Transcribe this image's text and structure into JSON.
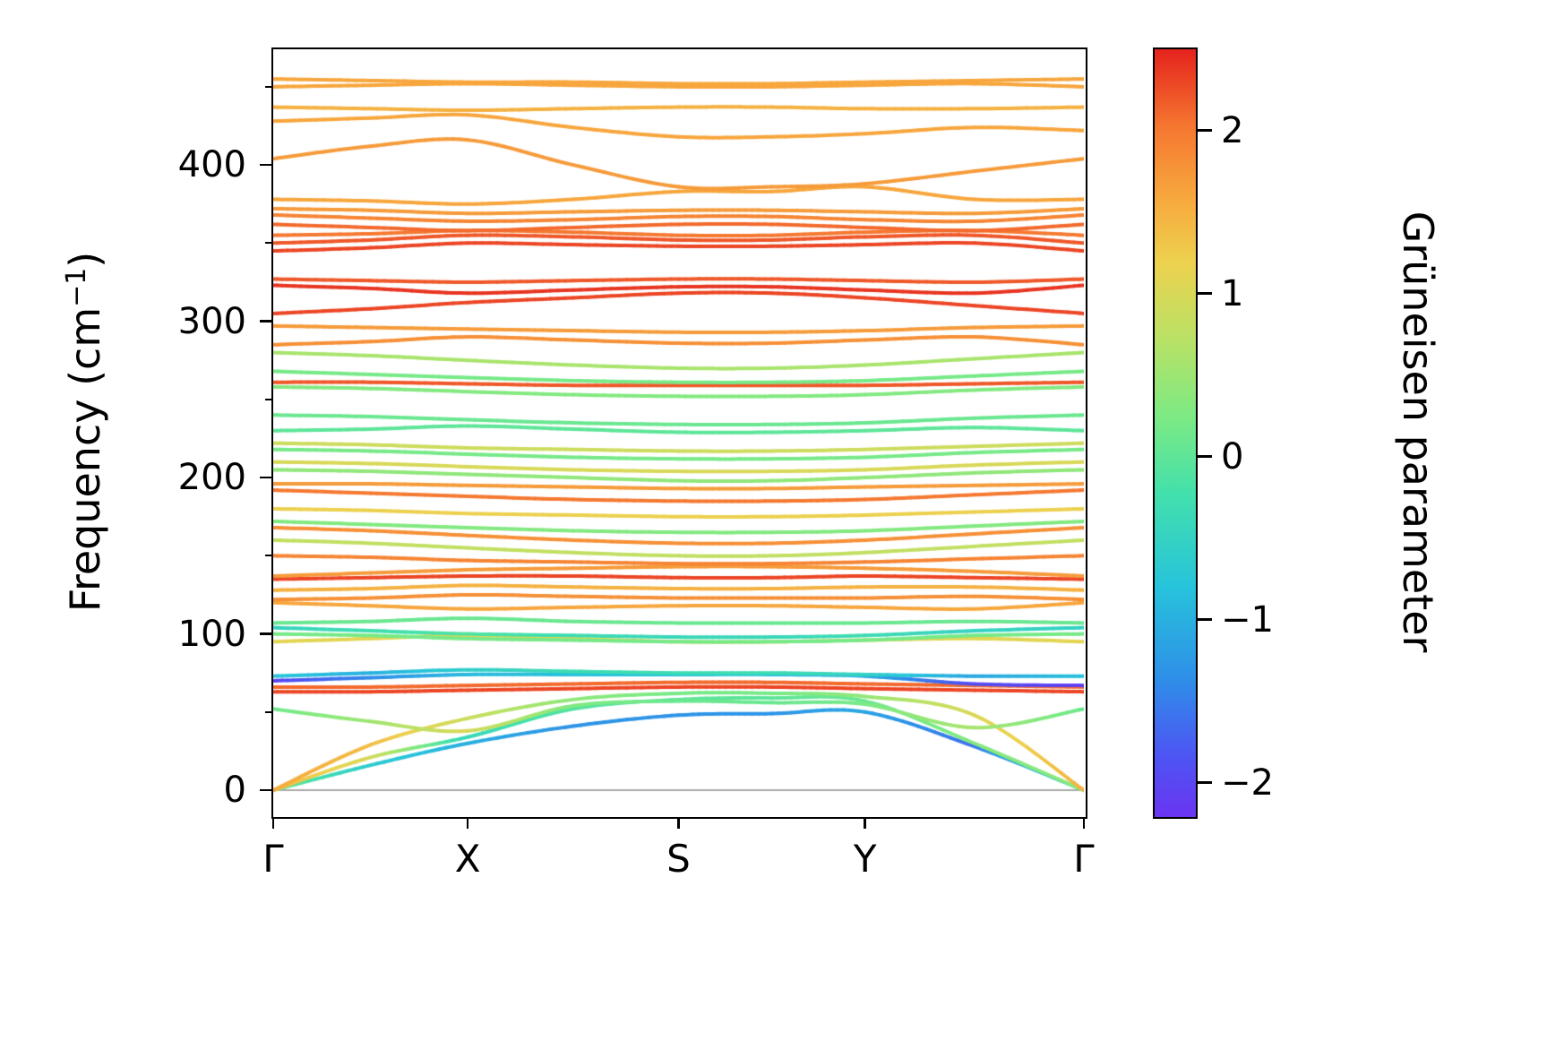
{
  "figure": {
    "background": "#ffffff",
    "ylabel": {
      "prefix": "Frequency (cm",
      "sup": "−1",
      "suffix": ")"
    },
    "colorbar_label": "Grüneisen parameter"
  },
  "chart_data": {
    "type": "line",
    "variant": "phonon-band-structure-colored-by-gruneisen-parameter",
    "title": "",
    "xlabel": "",
    "ylabel": "Frequency (cm⁻¹)",
    "grid": false,
    "x_axis": {
      "kpath_labels": [
        "Γ",
        "X",
        "S",
        "Y",
        "Γ"
      ],
      "kpath_positions": [
        0,
        0.24,
        0.5,
        0.73,
        1.0
      ]
    },
    "y_axis": {
      "ticks": [
        0,
        100,
        200,
        300,
        400
      ],
      "minor_ticks": [
        50,
        150,
        250,
        350,
        450
      ],
      "range": [
        -16,
        474
      ]
    },
    "zero_line": {
      "value": 0,
      "color": "#aaaaaa"
    },
    "colorbar": {
      "label": "Grüneisen parameter",
      "ticks": [
        2,
        1,
        0,
        -1,
        -2
      ],
      "range": [
        -2.2,
        2.5
      ],
      "stops": [
        {
          "t": 0.0,
          "c": "#6a35f2"
        },
        {
          "t": 0.08,
          "c": "#4d55f3"
        },
        {
          "t": 0.18,
          "c": "#2e8fe8"
        },
        {
          "t": 0.3,
          "c": "#27c3db"
        },
        {
          "t": 0.42,
          "c": "#42e0ac"
        },
        {
          "t": 0.52,
          "c": "#7cea84"
        },
        {
          "t": 0.62,
          "c": "#b8e266"
        },
        {
          "t": 0.72,
          "c": "#ecd24f"
        },
        {
          "t": 0.8,
          "c": "#f7ab3e"
        },
        {
          "t": 0.9,
          "c": "#f57630"
        },
        {
          "t": 1.0,
          "c": "#e5231d"
        }
      ]
    },
    "line_width": 4,
    "bands": [
      {
        "f": [
          0,
          16,
          30,
          41,
          48,
          49,
          50,
          28,
          0
        ],
        "g": [
          0.2,
          -0.6,
          -1.0,
          -1.3,
          -1.3,
          -1.3,
          -1.1,
          -1.6,
          -0.2
        ]
      },
      {
        "f": [
          0,
          21,
          34,
          52,
          58,
          59,
          57,
          30,
          0
        ],
        "g": [
          1.5,
          1.0,
          -0.4,
          -0.1,
          0.0,
          0.0,
          0.1,
          0.3,
          0.4
        ]
      },
      {
        "f": [
          0,
          29,
          46,
          58,
          62,
          62,
          60,
          48,
          0
        ],
        "g": [
          1.6,
          1.4,
          0.9,
          0.4,
          0.2,
          0.2,
          0.4,
          1.0,
          1.5
        ]
      },
      {
        "f": [
          52,
          44,
          38,
          54,
          57,
          56,
          55,
          40,
          52
        ],
        "g": [
          0.1,
          0.5,
          1.0,
          0.3,
          0.1,
          0.1,
          0.2,
          0.6,
          0.1
        ]
      },
      {
        "f": [
          63,
          63,
          64,
          65,
          66,
          66,
          65,
          64,
          63
        ],
        "g": 2.3
      },
      {
        "f": [
          66,
          66,
          67,
          68,
          69,
          69,
          68,
          67,
          66
        ],
        "g": 2.1
      },
      {
        "f": [
          70,
          72,
          74,
          74,
          74,
          74,
          73,
          68,
          67
        ],
        "g": [
          -2.1,
          -1.4,
          -0.9,
          -0.8,
          -0.8,
          -0.8,
          -1.0,
          -1.9,
          -2.1
        ]
      },
      {
        "f": [
          73,
          75,
          77,
          76,
          75,
          75,
          74,
          73,
          73
        ],
        "g": [
          -0.7,
          -1.0,
          -0.6,
          -0.3,
          -0.3,
          -0.3,
          -0.5,
          -1.1,
          -0.8
        ]
      },
      {
        "f": [
          95,
          97,
          99,
          97,
          95,
          95,
          96,
          97,
          95
        ],
        "g": 1.1
      },
      {
        "f": [
          100,
          99,
          97,
          96,
          95,
          95,
          96,
          99,
          100
        ],
        "g": 0.2
      },
      {
        "f": [
          104,
          102,
          100,
          99,
          98,
          98,
          99,
          102,
          104
        ],
        "g": [
          -0.5,
          -0.3,
          -0.1,
          -0.3,
          -0.4,
          -0.4,
          -0.3,
          -0.5,
          -0.5
        ]
      },
      {
        "f": [
          107,
          108,
          110,
          108,
          107,
          107,
          107,
          108,
          107
        ],
        "g": 0.1
      },
      {
        "f": [
          120,
          118,
          116,
          117,
          118,
          118,
          117,
          116,
          120
        ],
        "g": 1.6
      },
      {
        "f": [
          122,
          123,
          125,
          124,
          123,
          123,
          123,
          124,
          122
        ],
        "g": 1.8
      },
      {
        "f": [
          128,
          129,
          131,
          130,
          129,
          129,
          130,
          130,
          128
        ],
        "g": 1.5
      },
      {
        "f": [
          135,
          136,
          137,
          137,
          136,
          136,
          137,
          136,
          135
        ],
        "g": 2.3
      },
      {
        "f": [
          137,
          139,
          141,
          142,
          143,
          143,
          142,
          140,
          137
        ],
        "g": 1.7
      },
      {
        "f": [
          150,
          149,
          147,
          146,
          145,
          145,
          146,
          148,
          150
        ],
        "g": 1.9
      },
      {
        "f": [
          160,
          158,
          155,
          152,
          150,
          150,
          152,
          156,
          160
        ],
        "g": 0.8
      },
      {
        "f": [
          168,
          166,
          163,
          160,
          158,
          158,
          160,
          164,
          168
        ],
        "g": 1.8
      },
      {
        "f": [
          172,
          170,
          168,
          166,
          165,
          165,
          166,
          169,
          172
        ],
        "g": 0.3
      },
      {
        "f": [
          180,
          179,
          177,
          176,
          175,
          175,
          176,
          178,
          180
        ],
        "g": 1.2
      },
      {
        "f": [
          192,
          190,
          188,
          186,
          185,
          185,
          186,
          189,
          192
        ],
        "g": 2.0
      },
      {
        "f": [
          196,
          196,
          195,
          194,
          193,
          193,
          194,
          195,
          196
        ],
        "g": 1.7
      },
      {
        "f": [
          205,
          204,
          202,
          200,
          198,
          198,
          200,
          203,
          205
        ],
        "g": 0.4
      },
      {
        "f": [
          210,
          209,
          207,
          205,
          204,
          204,
          205,
          208,
          210
        ],
        "g": 1.0
      },
      {
        "f": [
          218,
          217,
          215,
          213,
          212,
          212,
          213,
          216,
          218
        ],
        "g": 0.2
      },
      {
        "f": [
          222,
          221,
          219,
          218,
          217,
          217,
          218,
          220,
          222
        ],
        "g": 0.9
      },
      {
        "f": [
          230,
          231,
          233,
          231,
          229,
          229,
          230,
          232,
          230
        ],
        "g": 0.0
      },
      {
        "f": [
          240,
          239,
          237,
          235,
          234,
          234,
          235,
          238,
          240
        ],
        "g": 0.1
      },
      {
        "f": [
          258,
          257,
          255,
          253,
          252,
          252,
          253,
          256,
          258
        ],
        "g": 0.3
      },
      {
        "f": [
          261,
          261,
          260,
          259,
          259,
          259,
          259,
          260,
          261
        ],
        "g": 2.2
      },
      {
        "f": [
          268,
          266,
          264,
          262,
          261,
          261,
          262,
          265,
          268
        ],
        "g": 0.2
      },
      {
        "f": [
          280,
          278,
          275,
          272,
          270,
          270,
          272,
          276,
          280
        ],
        "g": 0.6
      },
      {
        "f": [
          285,
          287,
          290,
          288,
          286,
          286,
          288,
          290,
          285
        ],
        "g": 1.8
      },
      {
        "f": [
          297,
          296,
          295,
          294,
          293,
          293,
          294,
          296,
          297
        ],
        "g": 1.7
      },
      {
        "f": [
          305,
          308,
          312,
          315,
          318,
          318,
          315,
          310,
          305
        ],
        "g": 2.3
      },
      {
        "f": [
          323,
          321,
          318,
          320,
          322,
          322,
          320,
          318,
          323
        ],
        "g": 2.4
      },
      {
        "f": [
          327,
          326,
          325,
          326,
          327,
          327,
          326,
          325,
          327
        ],
        "g": 2.2
      },
      {
        "f": [
          345,
          347,
          350,
          349,
          348,
          348,
          349,
          350,
          345
        ],
        "g": 2.3
      },
      {
        "f": [
          350,
          352,
          355,
          354,
          352,
          352,
          354,
          355,
          350
        ],
        "g": 2.2
      },
      {
        "f": [
          355,
          356,
          358,
          357,
          355,
          355,
          357,
          358,
          355
        ],
        "g": 2.0
      },
      {
        "f": [
          362,
          360,
          358,
          360,
          362,
          362,
          360,
          358,
          362
        ],
        "g": 2.1
      },
      {
        "f": [
          368,
          366,
          364,
          365,
          367,
          367,
          365,
          364,
          368
        ],
        "g": 1.9
      },
      {
        "f": [
          372,
          371,
          369,
          370,
          371,
          371,
          370,
          369,
          372
        ],
        "g": 1.7
      },
      {
        "f": [
          378,
          377,
          375,
          378,
          383,
          383,
          386,
          378,
          378
        ],
        "g": 1.6
      },
      {
        "f": [
          404,
          412,
          416,
          400,
          386,
          386,
          388,
          396,
          404
        ],
        "g": 1.7
      },
      {
        "f": [
          428,
          430,
          432,
          424,
          418,
          418,
          420,
          424,
          422
        ],
        "g": 1.6
      },
      {
        "f": [
          437,
          436,
          435,
          436,
          437,
          437,
          436,
          436,
          437
        ],
        "g": 1.5
      },
      {
        "f": [
          450,
          451,
          452,
          451,
          450,
          450,
          451,
          452,
          450
        ],
        "g": 1.6
      },
      {
        "f": [
          455,
          454,
          453,
          453,
          452,
          452,
          453,
          454,
          455
        ],
        "g": 1.6
      }
    ]
  }
}
